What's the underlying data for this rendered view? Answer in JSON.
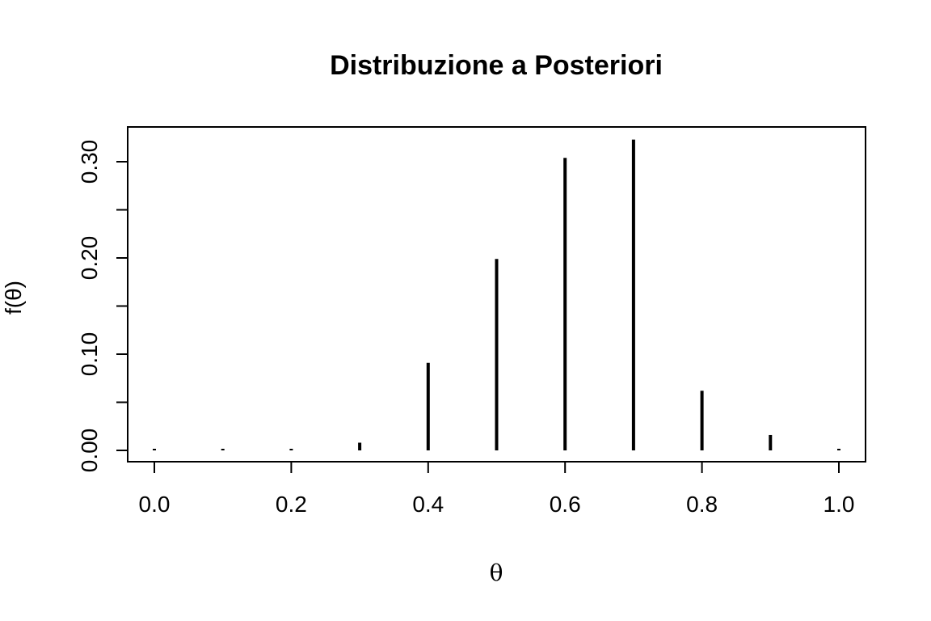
{
  "chart_data": {
    "type": "bar",
    "subtype": "spike",
    "title": "Distribuzione a Posteriori",
    "xlabel": "θ",
    "ylabel": "f(θ)",
    "x": [
      0.0,
      0.1,
      0.2,
      0.3,
      0.4,
      0.5,
      0.6,
      0.7,
      0.8,
      0.9,
      1.0
    ],
    "values": [
      0.0,
      0.0,
      0.0005,
      0.008,
      0.091,
      0.199,
      0.304,
      0.323,
      0.062,
      0.016,
      0.0
    ],
    "xlim": [
      0.0,
      1.0
    ],
    "ylim": [
      0.0,
      0.33
    ],
    "xticks": [
      0.0,
      0.2,
      0.4,
      0.6,
      0.8,
      1.0
    ],
    "xtick_labels": [
      "0.0",
      "0.2",
      "0.4",
      "0.6",
      "0.8",
      "1.0"
    ],
    "yticks": [
      0.0,
      0.05,
      0.1,
      0.15,
      0.2,
      0.25,
      0.3
    ],
    "ytick_labels": [
      "0.00",
      "",
      "0.10",
      "",
      "0.20",
      "",
      "0.30"
    ],
    "grid": false,
    "legend": null,
    "color": "#000000"
  }
}
